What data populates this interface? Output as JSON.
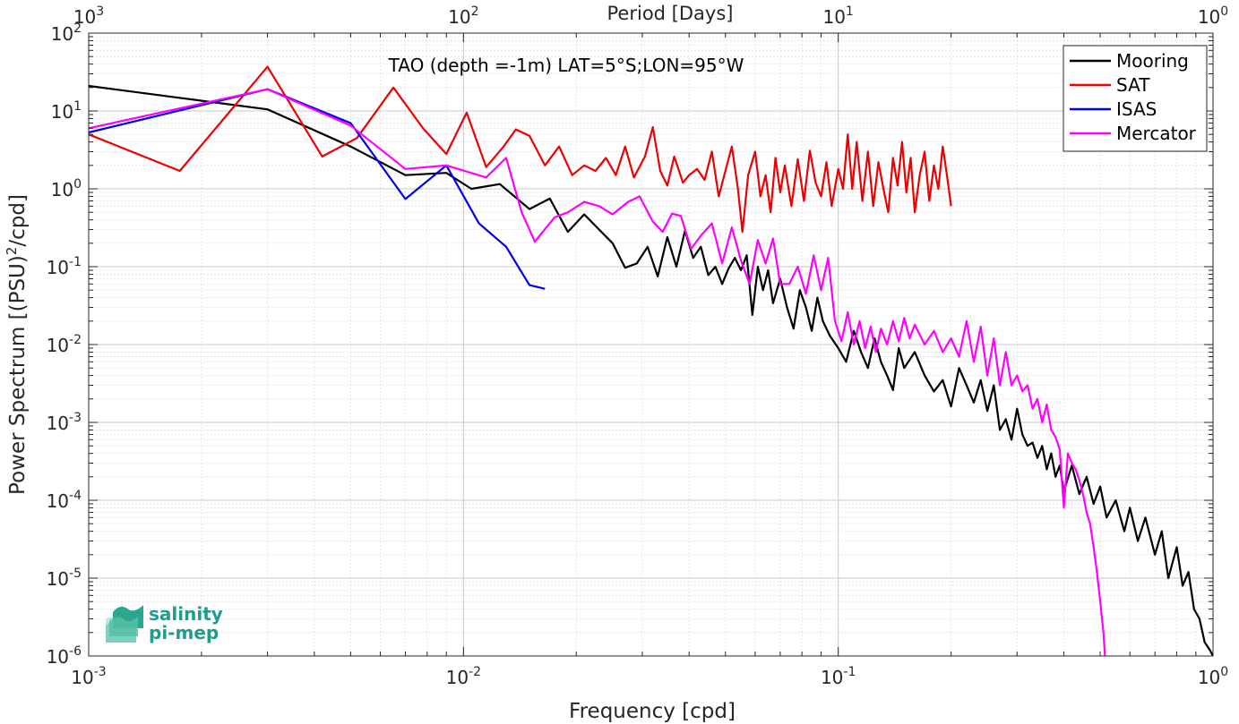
{
  "chart_data": {
    "type": "line",
    "title": "TAO (depth =-1m) LAT=5°S;LON=95°W",
    "xlabel": "Frequency [cpd]",
    "ylabel": "Power Spectrum [(PSU)^2/cpd]",
    "ylabel_parts": {
      "main": "Power Spectrum [(PSU)",
      "sup": "2",
      "tail": "/cpd]"
    },
    "top_xlabel": "Period [Days]",
    "xscale": "log",
    "yscale": "log",
    "xlim": [
      0.001,
      1
    ],
    "ylim": [
      1e-06,
      100
    ],
    "grid": true,
    "legend_position": "top-right",
    "x_ticks": [
      {
        "value": 0.001,
        "base": "10",
        "exp": "-3"
      },
      {
        "value": 0.01,
        "base": "10",
        "exp": "-2"
      },
      {
        "value": 0.1,
        "base": "10",
        "exp": "-1"
      },
      {
        "value": 1,
        "base": "10",
        "exp": "0"
      }
    ],
    "top_ticks": [
      {
        "value": 0.001,
        "base": "10",
        "exp": "3"
      },
      {
        "value": 0.01,
        "base": "10",
        "exp": "2"
      },
      {
        "value": 0.1,
        "base": "10",
        "exp": "1"
      },
      {
        "value": 1,
        "base": "10",
        "exp": "0"
      }
    ],
    "y_ticks": [
      {
        "value": 1e-06,
        "base": "10",
        "exp": "-6"
      },
      {
        "value": 1e-05,
        "base": "10",
        "exp": "-5"
      },
      {
        "value": 0.0001,
        "base": "10",
        "exp": "-4"
      },
      {
        "value": 0.001,
        "base": "10",
        "exp": "-3"
      },
      {
        "value": 0.01,
        "base": "10",
        "exp": "-2"
      },
      {
        "value": 0.1,
        "base": "10",
        "exp": "-1"
      },
      {
        "value": 1,
        "base": "10",
        "exp": "0"
      },
      {
        "value": 10,
        "base": "10",
        "exp": "1"
      },
      {
        "value": 100,
        "base": "10",
        "exp": "2"
      }
    ],
    "series": [
      {
        "name": "Mooring",
        "color": "#000000",
        "points": [
          [
            0.001,
            21
          ],
          [
            0.003,
            10.5
          ],
          [
            0.005,
            3.5
          ],
          [
            0.007,
            1.5
          ],
          [
            0.009,
            1.6
          ],
          [
            0.0105,
            1.0
          ],
          [
            0.0125,
            1.15
          ],
          [
            0.015,
            0.55
          ],
          [
            0.017,
            0.75
          ],
          [
            0.019,
            0.28
          ],
          [
            0.021,
            0.47
          ],
          [
            0.023,
            0.3
          ],
          [
            0.025,
            0.2
          ],
          [
            0.027,
            0.097
          ],
          [
            0.029,
            0.11
          ],
          [
            0.031,
            0.18
          ],
          [
            0.033,
            0.075
          ],
          [
            0.035,
            0.24
          ],
          [
            0.037,
            0.1
          ],
          [
            0.039,
            0.29
          ],
          [
            0.041,
            0.13
          ],
          [
            0.043,
            0.18
          ],
          [
            0.045,
            0.078
          ],
          [
            0.047,
            0.1
          ],
          [
            0.049,
            0.06
          ],
          [
            0.051,
            0.095
          ],
          [
            0.053,
            0.13
          ],
          [
            0.055,
            0.09
          ],
          [
            0.057,
            0.14
          ],
          [
            0.059,
            0.024
          ],
          [
            0.061,
            0.1
          ],
          [
            0.063,
            0.05
          ],
          [
            0.065,
            0.09
          ],
          [
            0.067,
            0.034
          ],
          [
            0.07,
            0.07
          ],
          [
            0.073,
            0.03
          ],
          [
            0.076,
            0.016
          ],
          [
            0.079,
            0.05
          ],
          [
            0.082,
            0.03
          ],
          [
            0.085,
            0.015
          ],
          [
            0.088,
            0.04
          ],
          [
            0.091,
            0.02
          ],
          [
            0.095,
            0.013
          ],
          [
            0.1,
            0.009
          ],
          [
            0.105,
            0.006
          ],
          [
            0.11,
            0.015
          ],
          [
            0.115,
            0.008
          ],
          [
            0.12,
            0.005
          ],
          [
            0.125,
            0.012
          ],
          [
            0.13,
            0.006
          ],
          [
            0.135,
            0.004
          ],
          [
            0.14,
            0.0026
          ],
          [
            0.145,
            0.009
          ],
          [
            0.15,
            0.005
          ],
          [
            0.16,
            0.008
          ],
          [
            0.17,
            0.004
          ],
          [
            0.18,
            0.0025
          ],
          [
            0.19,
            0.0035
          ],
          [
            0.2,
            0.0016
          ],
          [
            0.21,
            0.005
          ],
          [
            0.22,
            0.003
          ],
          [
            0.23,
            0.0018
          ],
          [
            0.24,
            0.0035
          ],
          [
            0.25,
            0.0014
          ],
          [
            0.26,
            0.003
          ],
          [
            0.27,
            0.0008
          ],
          [
            0.28,
            0.0011
          ],
          [
            0.29,
            0.0006
          ],
          [
            0.3,
            0.0015
          ],
          [
            0.31,
            0.0007
          ],
          [
            0.32,
            0.0005
          ],
          [
            0.33,
            0.00055
          ],
          [
            0.34,
            0.00035
          ],
          [
            0.35,
            0.0005
          ],
          [
            0.36,
            0.00025
          ],
          [
            0.37,
            0.0004
          ],
          [
            0.38,
            0.0002
          ],
          [
            0.39,
            0.00028
          ],
          [
            0.4,
            0.00013
          ],
          [
            0.42,
            0.00028
          ],
          [
            0.44,
            0.00012
          ],
          [
            0.46,
            0.0002
          ],
          [
            0.48,
            9e-05
          ],
          [
            0.5,
            0.00015
          ],
          [
            0.52,
            6e-05
          ],
          [
            0.55,
            0.0001
          ],
          [
            0.58,
            4e-05
          ],
          [
            0.6,
            8e-05
          ],
          [
            0.63,
            3e-05
          ],
          [
            0.66,
            6e-05
          ],
          [
            0.7,
            2e-05
          ],
          [
            0.73,
            4e-05
          ],
          [
            0.76,
            1e-05
          ],
          [
            0.8,
            2.5e-05
          ],
          [
            0.83,
            8e-06
          ],
          [
            0.86,
            1.2e-05
          ],
          [
            0.89,
            4e-06
          ],
          [
            0.92,
            3e-06
          ],
          [
            0.95,
            1.5e-06
          ],
          [
            0.98,
            1.2e-06
          ],
          [
            1.0,
            1e-06
          ]
        ]
      },
      {
        "name": "SAT",
        "color": "#ee0000",
        "points": [
          [
            0.001,
            5
          ],
          [
            0.00175,
            1.7
          ],
          [
            0.003,
            37
          ],
          [
            0.0042,
            2.6
          ],
          [
            0.0052,
            4.5
          ],
          [
            0.0065,
            20
          ],
          [
            0.0078,
            6
          ],
          [
            0.009,
            2.8
          ],
          [
            0.0102,
            9.5
          ],
          [
            0.0115,
            1.9
          ],
          [
            0.0128,
            3.5
          ],
          [
            0.0138,
            5.8
          ],
          [
            0.015,
            4.8
          ],
          [
            0.0165,
            2.0
          ],
          [
            0.018,
            3.5
          ],
          [
            0.0195,
            1.5
          ],
          [
            0.021,
            2.0
          ],
          [
            0.0225,
            1.7
          ],
          [
            0.024,
            2.5
          ],
          [
            0.0255,
            1.5
          ],
          [
            0.027,
            3.5
          ],
          [
            0.0285,
            1.4
          ],
          [
            0.0305,
            2.6
          ],
          [
            0.032,
            6.2
          ],
          [
            0.0335,
            1.7
          ],
          [
            0.035,
            1.1
          ],
          [
            0.0365,
            2.6
          ],
          [
            0.0385,
            1.2
          ],
          [
            0.04,
            1.5
          ],
          [
            0.042,
            1.8
          ],
          [
            0.044,
            1.3
          ],
          [
            0.046,
            3.0
          ],
          [
            0.048,
            0.8
          ],
          [
            0.05,
            1.7
          ],
          [
            0.052,
            3.5
          ],
          [
            0.054,
            1.0
          ],
          [
            0.0555,
            0.28
          ],
          [
            0.0575,
            1.5
          ],
          [
            0.06,
            3.0
          ],
          [
            0.062,
            0.8
          ],
          [
            0.064,
            1.5
          ],
          [
            0.066,
            0.5
          ],
          [
            0.068,
            2.5
          ],
          [
            0.07,
            0.9
          ],
          [
            0.072,
            2.0
          ],
          [
            0.075,
            0.6
          ],
          [
            0.078,
            2.4
          ],
          [
            0.081,
            0.7
          ],
          [
            0.084,
            3.1
          ],
          [
            0.087,
            1.2
          ],
          [
            0.09,
            0.8
          ],
          [
            0.093,
            2.2
          ],
          [
            0.096,
            0.6
          ],
          [
            0.1,
            1.8
          ],
          [
            0.103,
            1.0
          ],
          [
            0.106,
            5.0
          ],
          [
            0.109,
            1.0
          ],
          [
            0.112,
            4.0
          ],
          [
            0.116,
            0.7
          ],
          [
            0.12,
            3.0
          ],
          [
            0.124,
            0.6
          ],
          [
            0.128,
            2.2
          ],
          [
            0.132,
            1.0
          ],
          [
            0.136,
            0.5
          ],
          [
            0.14,
            2.5
          ],
          [
            0.144,
            1.1
          ],
          [
            0.148,
            4.0
          ],
          [
            0.152,
            0.9
          ],
          [
            0.156,
            2.5
          ],
          [
            0.16,
            0.5
          ],
          [
            0.165,
            1.5
          ],
          [
            0.17,
            3.0
          ],
          [
            0.175,
            0.7
          ],
          [
            0.18,
            2.0
          ],
          [
            0.185,
            1.0
          ],
          [
            0.19,
            3.5
          ],
          [
            0.195,
            1.5
          ],
          [
            0.2,
            0.6
          ]
        ]
      },
      {
        "name": "ISAS",
        "color": "#0000ee",
        "points": [
          [
            0.001,
            5.3
          ],
          [
            0.003,
            19
          ],
          [
            0.005,
            7
          ],
          [
            0.007,
            0.74
          ],
          [
            0.009,
            2.0
          ],
          [
            0.011,
            0.36
          ],
          [
            0.013,
            0.18
          ],
          [
            0.015,
            0.058
          ],
          [
            0.0165,
            0.052
          ]
        ]
      },
      {
        "name": "Mercator",
        "color": "#ff00ff",
        "points": [
          [
            0.001,
            6
          ],
          [
            0.003,
            19
          ],
          [
            0.005,
            6.5
          ],
          [
            0.007,
            1.8
          ],
          [
            0.009,
            2.0
          ],
          [
            0.0115,
            1.4
          ],
          [
            0.013,
            2.5
          ],
          [
            0.0143,
            0.5
          ],
          [
            0.0155,
            0.21
          ],
          [
            0.0175,
            0.43
          ],
          [
            0.019,
            0.5
          ],
          [
            0.021,
            0.68
          ],
          [
            0.023,
            0.6
          ],
          [
            0.025,
            0.47
          ],
          [
            0.0275,
            0.68
          ],
          [
            0.0295,
            0.8
          ],
          [
            0.032,
            0.38
          ],
          [
            0.034,
            0.28
          ],
          [
            0.036,
            0.48
          ],
          [
            0.038,
            0.45
          ],
          [
            0.0405,
            0.17
          ],
          [
            0.043,
            0.25
          ],
          [
            0.046,
            0.36
          ],
          [
            0.049,
            0.11
          ],
          [
            0.052,
            0.32
          ],
          [
            0.055,
            0.12
          ],
          [
            0.058,
            0.06
          ],
          [
            0.061,
            0.22
          ],
          [
            0.064,
            0.11
          ],
          [
            0.067,
            0.23
          ],
          [
            0.07,
            0.06
          ],
          [
            0.074,
            0.06
          ],
          [
            0.078,
            0.1
          ],
          [
            0.082,
            0.045
          ],
          [
            0.086,
            0.14
          ],
          [
            0.09,
            0.05
          ],
          [
            0.094,
            0.13
          ],
          [
            0.098,
            0.02
          ],
          [
            0.102,
            0.011
          ],
          [
            0.106,
            0.026
          ],
          [
            0.11,
            0.01
          ],
          [
            0.114,
            0.02
          ],
          [
            0.118,
            0.009
          ],
          [
            0.122,
            0.017
          ],
          [
            0.126,
            0.008
          ],
          [
            0.13,
            0.016
          ],
          [
            0.135,
            0.01
          ],
          [
            0.14,
            0.02
          ],
          [
            0.145,
            0.011
          ],
          [
            0.15,
            0.022
          ],
          [
            0.155,
            0.012
          ],
          [
            0.16,
            0.018
          ],
          [
            0.17,
            0.01
          ],
          [
            0.18,
            0.015
          ],
          [
            0.19,
            0.008
          ],
          [
            0.2,
            0.012
          ],
          [
            0.21,
            0.007
          ],
          [
            0.22,
            0.02
          ],
          [
            0.23,
            0.006
          ],
          [
            0.24,
            0.017
          ],
          [
            0.25,
            0.004
          ],
          [
            0.26,
            0.012
          ],
          [
            0.27,
            0.003
          ],
          [
            0.28,
            0.008
          ],
          [
            0.29,
            0.003
          ],
          [
            0.3,
            0.004
          ],
          [
            0.31,
            0.0025
          ],
          [
            0.32,
            0.003
          ],
          [
            0.33,
            0.0015
          ],
          [
            0.34,
            0.002
          ],
          [
            0.35,
            0.001
          ],
          [
            0.36,
            0.0017
          ],
          [
            0.37,
            0.0008
          ],
          [
            0.38,
            0.00065
          ],
          [
            0.39,
            0.00045
          ],
          [
            0.4,
            8e-05
          ],
          [
            0.41,
            0.0004
          ],
          [
            0.42,
            0.0003
          ],
          [
            0.43,
            0.00025
          ],
          [
            0.44,
            0.00018
          ],
          [
            0.45,
            0.00012
          ],
          [
            0.46,
            7e-05
          ],
          [
            0.47,
            5e-05
          ],
          [
            0.48,
            2.5e-05
          ],
          [
            0.49,
            1.2e-05
          ],
          [
            0.5,
            5e-06
          ],
          [
            0.51,
            2e-06
          ],
          [
            0.515,
            1e-06
          ]
        ]
      }
    ]
  },
  "logo": {
    "line1": "salinity",
    "line2": "pi-mep",
    "color": "#1f9c8c"
  }
}
